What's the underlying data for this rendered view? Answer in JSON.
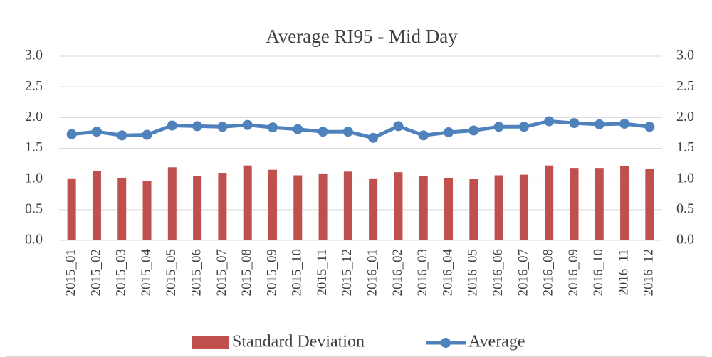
{
  "chart_data": {
    "type": "bar-line",
    "title": "Average RI95 - Mid Day",
    "categories": [
      "2015_01",
      "2015_02",
      "2015_03",
      "2015_04",
      "2015_05",
      "2015_06",
      "2015_07",
      "2015_08",
      "2015_09",
      "2015_10",
      "2015_11",
      "2015_12",
      "2016_01",
      "2016_02",
      "2016_03",
      "2016_04",
      "2016_05",
      "2016_06",
      "2016_07",
      "2016_08",
      "2016_09",
      "2016_10",
      "2016_11",
      "2016_12"
    ],
    "series": [
      {
        "name": "Standard Deviation",
        "type": "bar",
        "color": "#c0504d",
        "values": [
          1.01,
          1.13,
          1.02,
          0.97,
          1.19,
          1.05,
          1.1,
          1.22,
          1.15,
          1.06,
          1.09,
          1.12,
          1.01,
          1.11,
          1.05,
          1.02,
          1.0,
          1.06,
          1.07,
          1.22,
          1.18,
          1.18,
          1.21,
          1.16
        ]
      },
      {
        "name": "Average",
        "type": "line",
        "axis": "y2",
        "color": "#4f81bd",
        "values": [
          1.73,
          1.77,
          1.71,
          1.72,
          1.87,
          1.86,
          1.85,
          1.88,
          1.84,
          1.81,
          1.77,
          1.77,
          1.67,
          1.86,
          1.71,
          1.76,
          1.79,
          1.85,
          1.85,
          1.94,
          1.91,
          1.89,
          1.9,
          1.85
        ]
      }
    ],
    "ylim": [
      0,
      3
    ],
    "yticks": [
      {
        "value": 0,
        "label": "0.0"
      },
      {
        "value": 0.5,
        "label": "0.5"
      },
      {
        "value": 1,
        "label": "1.0"
      },
      {
        "value": 1.5,
        "label": "1.5"
      },
      {
        "value": 2,
        "label": "2.0"
      },
      {
        "value": 2.5,
        "label": "2.5"
      },
      {
        "value": 3,
        "label": "3.0"
      }
    ],
    "y2lim": [
      0,
      3
    ],
    "y2ticks": [
      {
        "value": 0,
        "label": "0.0"
      },
      {
        "value": 0.5,
        "label": "0.5"
      },
      {
        "value": 1,
        "label": "1.0"
      },
      {
        "value": 1.5,
        "label": "1.5"
      },
      {
        "value": 2,
        "label": "2.0"
      },
      {
        "value": 2.5,
        "label": "2.5"
      },
      {
        "value": 3,
        "label": "3.0"
      }
    ],
    "grid": true,
    "legend": "bottom"
  }
}
